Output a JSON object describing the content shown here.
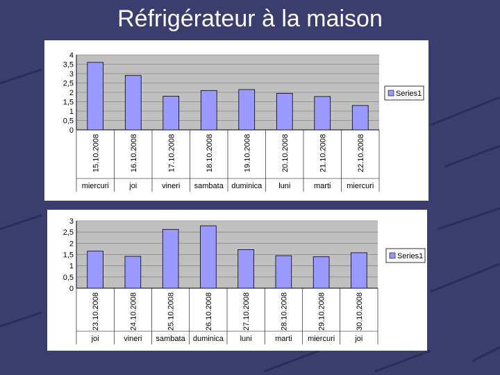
{
  "slide": {
    "title": "Réfrigérateur à la maison"
  },
  "colors": {
    "bar": "#9999ff",
    "plot_bg": "#c0c0c0",
    "slide_bg": "#3a3d6e"
  },
  "chart_data": [
    {
      "type": "bar",
      "categories": [
        "15.10.2008",
        "16.10.2008",
        "17.10.2008",
        "18.10.2008",
        "19.10.2008",
        "20.10.2008",
        "21.10.2008",
        "22.10.2008"
      ],
      "days": [
        "miercuri",
        "joi",
        "vineri",
        "sambata",
        "duminica",
        "luni",
        "marti",
        "miercuri"
      ],
      "series": [
        {
          "name": "Series1",
          "values": [
            3.6,
            2.9,
            1.8,
            2.1,
            2.15,
            1.95,
            1.78,
            1.3
          ]
        }
      ],
      "yticks": [
        "0",
        "0,5",
        "1",
        "1,5",
        "2",
        "2,5",
        "3",
        "3,5",
        "4"
      ],
      "ylim": [
        0,
        4
      ],
      "grid": true,
      "legend": "right"
    },
    {
      "type": "bar",
      "categories": [
        "23.10.2008",
        "24.10.2008",
        "25.10.2008",
        "26.10.2008",
        "27.10.2008",
        "28.10.2008",
        "29.10.2008",
        "30.10.2008"
      ],
      "days": [
        "joi",
        "vineri",
        "sambata",
        "duminica",
        "luni",
        "marti",
        "miercuri",
        "joi"
      ],
      "series": [
        {
          "name": "Series1",
          "values": [
            1.65,
            1.42,
            2.62,
            2.78,
            1.72,
            1.45,
            1.4,
            1.58
          ]
        }
      ],
      "yticks": [
        "0",
        "0,5",
        "1",
        "1,5",
        "2",
        "2,5",
        "3"
      ],
      "ylim": [
        0,
        3
      ],
      "grid": true,
      "legend": "right"
    }
  ]
}
